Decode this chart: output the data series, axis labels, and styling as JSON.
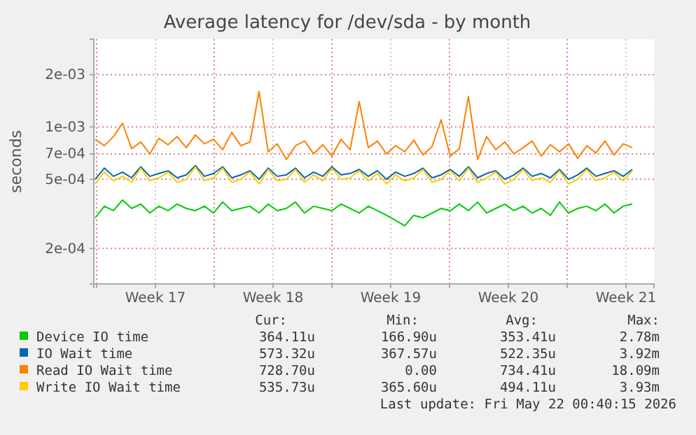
{
  "chart_data": {
    "type": "line",
    "title": "Average latency for /dev/sda - by month",
    "ylabel": "seconds",
    "log": true,
    "grid": true,
    "legend": "bottom",
    "xlim": [
      "2026-04-19T20:00",
      "2026-05-23T04:00"
    ],
    "xticks": [
      {
        "value": "2026-04-20",
        "label": null
      },
      {
        "value": "2026-04-23T12:00",
        "label": "Week 17"
      },
      {
        "value": "2026-04-27",
        "label": null
      },
      {
        "value": "2026-04-30T12:00",
        "label": "Week 18"
      },
      {
        "value": "2026-05-04",
        "label": null
      },
      {
        "value": "2026-05-07T12:00",
        "label": "Week 19"
      },
      {
        "value": "2026-05-11",
        "label": null
      },
      {
        "value": "2026-05-14T12:00",
        "label": "Week 20"
      },
      {
        "value": "2026-05-18",
        "label": null
      },
      {
        "value": "2026-05-21T12:00",
        "label": "Week 21"
      }
    ],
    "ylim": [
      0.000125,
      0.0032
    ],
    "yticks": [
      {
        "value": 0.0002,
        "label": "2e-04"
      },
      {
        "value": 0.0005,
        "label": "5e-04"
      },
      {
        "value": 0.0007,
        "label": "7e-04"
      },
      {
        "value": 0.001,
        "label": "1e-03"
      },
      {
        "value": 0.002,
        "label": "2e-03"
      }
    ],
    "x": [
      "2026-04-19T22:00",
      "2026-04-20T11:00",
      "2026-04-21T00:00",
      "2026-04-21T13:00",
      "2026-04-22T02:00",
      "2026-04-22T15:00",
      "2026-04-23T04:00",
      "2026-04-23T17:00",
      "2026-04-24T06:00",
      "2026-04-24T19:00",
      "2026-04-25T08:00",
      "2026-04-25T21:00",
      "2026-04-26T10:00",
      "2026-04-26T23:00",
      "2026-04-27T12:00",
      "2026-04-28T01:00",
      "2026-04-28T14:00",
      "2026-04-29T03:00",
      "2026-04-29T16:00",
      "2026-04-30T05:00",
      "2026-04-30T18:00",
      "2026-05-01T07:00",
      "2026-05-01T20:00",
      "2026-05-02T09:00",
      "2026-05-02T22:00",
      "2026-05-03T11:00",
      "2026-05-04T00:00",
      "2026-05-04T13:00",
      "2026-05-05T02:00",
      "2026-05-05T15:00",
      "2026-05-06T04:00",
      "2026-05-06T17:00",
      "2026-05-07T06:00",
      "2026-05-07T19:00",
      "2026-05-08T08:00",
      "2026-05-08T21:00",
      "2026-05-09T10:00",
      "2026-05-09T23:00",
      "2026-05-10T12:00",
      "2026-05-11T01:00",
      "2026-05-11T14:00",
      "2026-05-12T03:00",
      "2026-05-12T16:00",
      "2026-05-13T05:00",
      "2026-05-13T18:00",
      "2026-05-14T07:00",
      "2026-05-14T20:00",
      "2026-05-15T09:00",
      "2026-05-15T22:00",
      "2026-05-16T11:00",
      "2026-05-17T00:00",
      "2026-05-17T13:00",
      "2026-05-18T02:00",
      "2026-05-18T15:00",
      "2026-05-19T04:00",
      "2026-05-19T17:00",
      "2026-05-20T06:00",
      "2026-05-20T19:00",
      "2026-05-21T08:00",
      "2026-05-21T21:00"
    ],
    "series": [
      {
        "name": "Device IO time",
        "color": "#00cc00",
        "values": [
          0.0003,
          0.00035,
          0.00033,
          0.00038,
          0.00034,
          0.00036,
          0.00032,
          0.00035,
          0.00033,
          0.00036,
          0.00034,
          0.00033,
          0.00035,
          0.00032,
          0.00037,
          0.00033,
          0.00034,
          0.00035,
          0.00032,
          0.00036,
          0.00033,
          0.00034,
          0.00037,
          0.00032,
          0.00035,
          0.00034,
          0.00033,
          0.00036,
          0.00034,
          0.00032,
          0.00035,
          0.00033,
          0.00031,
          0.00029,
          0.00027,
          0.00031,
          0.0003,
          0.00032,
          0.00034,
          0.00033,
          0.00036,
          0.00033,
          0.00037,
          0.00032,
          0.00034,
          0.00036,
          0.00033,
          0.00035,
          0.00032,
          0.00034,
          0.00031,
          0.00037,
          0.00032,
          0.00034,
          0.00035,
          0.00033,
          0.00036,
          0.00032,
          0.00035,
          0.00036
        ]
      },
      {
        "name": "IO Wait time",
        "color": "#0066b3",
        "values": [
          0.0005,
          0.00058,
          0.00052,
          0.00055,
          0.00051,
          0.00059,
          0.00052,
          0.00054,
          0.00056,
          0.00051,
          0.00053,
          0.0006,
          0.00052,
          0.00054,
          0.00059,
          0.00051,
          0.00053,
          0.00056,
          0.0005,
          0.00058,
          0.00052,
          0.00053,
          0.00058,
          0.00051,
          0.00055,
          0.00052,
          0.00059,
          0.00053,
          0.00054,
          0.00057,
          0.00052,
          0.00056,
          0.0005,
          0.00055,
          0.00052,
          0.00054,
          0.00058,
          0.00051,
          0.00053,
          0.00057,
          0.00052,
          0.00059,
          0.00051,
          0.00054,
          0.00056,
          0.0005,
          0.00053,
          0.00058,
          0.00052,
          0.00054,
          0.00051,
          0.00057,
          0.0005,
          0.00053,
          0.00058,
          0.00052,
          0.00054,
          0.00056,
          0.00052,
          0.00057
        ]
      },
      {
        "name": "Read IO Wait time",
        "color": "#ff8000",
        "values": [
          0.00085,
          0.00078,
          0.00088,
          0.00105,
          0.00075,
          0.00082,
          0.0007,
          0.00086,
          0.00079,
          0.00088,
          0.00076,
          0.0009,
          0.0008,
          0.00085,
          0.00074,
          0.00093,
          0.00078,
          0.00082,
          0.0016,
          0.00072,
          0.0008,
          0.00065,
          0.00078,
          0.00083,
          0.0007,
          0.00079,
          0.00068,
          0.00085,
          0.00074,
          0.0014,
          0.00076,
          0.00083,
          0.0007,
          0.00078,
          0.00072,
          0.00084,
          0.00069,
          0.00077,
          0.0011,
          0.00068,
          0.00075,
          0.0015,
          0.00065,
          0.00088,
          0.00074,
          0.00082,
          0.0007,
          0.00076,
          0.00083,
          0.00068,
          0.00079,
          0.00072,
          0.0008,
          0.00066,
          0.00078,
          0.00071,
          0.00083,
          0.00069,
          0.0008,
          0.00076
        ]
      },
      {
        "name": "Write IO Wait time",
        "color": "#ffcc00",
        "values": [
          0.00047,
          0.00055,
          0.00049,
          0.00052,
          0.00048,
          0.00058,
          0.00049,
          0.00051,
          0.00055,
          0.00048,
          0.0005,
          0.00059,
          0.00049,
          0.00051,
          0.00058,
          0.00048,
          0.0005,
          0.00055,
          0.00047,
          0.00057,
          0.00049,
          0.0005,
          0.00057,
          0.00048,
          0.00053,
          0.00049,
          0.00058,
          0.0005,
          0.00051,
          0.00056,
          0.00049,
          0.00054,
          0.00047,
          0.00053,
          0.00049,
          0.00051,
          0.00057,
          0.00048,
          0.0005,
          0.00056,
          0.00049,
          0.00058,
          0.00048,
          0.00051,
          0.00055,
          0.00047,
          0.0005,
          0.00057,
          0.00049,
          0.00051,
          0.00048,
          0.00056,
          0.00047,
          0.0005,
          0.00057,
          0.00049,
          0.00051,
          0.00055,
          0.00049,
          0.00056
        ]
      }
    ],
    "annotations": [
      "Cur:",
      "Min:",
      "Avg:",
      "Max:",
      "364.11u",
      "166.90u",
      "353.41u",
      "2.78m",
      "573.32u",
      "367.57u",
      "522.35u",
      "3.92m",
      "728.70u",
      "0.00",
      "734.41u",
      "18.09m",
      "535.73u",
      "365.60u",
      "494.11u",
      "3.93m",
      "Last update: Fri May 22 00:40:15 2026"
    ]
  }
}
